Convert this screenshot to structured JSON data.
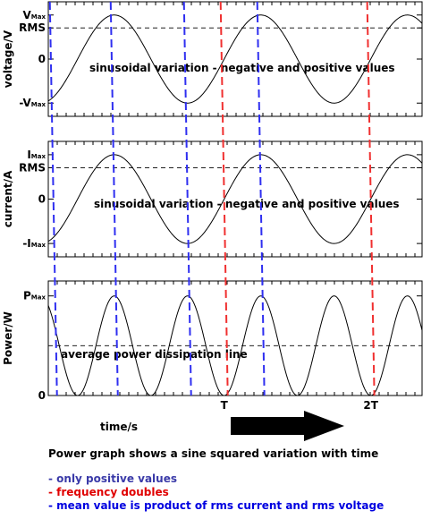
{
  "figure": {
    "xlabel": "time/s",
    "caption": "Power graph shows a sine squared variation with time",
    "bullets": [
      {
        "text": "- only positive values",
        "color": "#3a3aa8"
      },
      {
        "text": "- frequency doubles",
        "color": "#e00000"
      },
      {
        "text": "- mean value is product of rms current and rms voltage",
        "color": "#0000e0"
      }
    ],
    "x_tick_labels": [
      "T",
      "2T"
    ]
  },
  "chart_data": [
    {
      "type": "line",
      "ylabel": "voltage/V",
      "annotation": "sinusoidal variation - negative and positive values",
      "yticks": [
        {
          "main": "V",
          "sub": "Max",
          "value": 1
        },
        {
          "main": "RMS",
          "sub": "",
          "value": 0.707
        },
        {
          "main": "0",
          "sub": "",
          "value": 0
        },
        {
          "main": "-V",
          "sub": "Max",
          "value": -1
        }
      ],
      "series": [
        {
          "function": "sin",
          "amplitude": 1,
          "frequency_cycles_per_T": 1,
          "phase_rad": 0
        }
      ],
      "rms_line": 0.707,
      "x": [
        0,
        0.125,
        0.25,
        0.375,
        0.5,
        0.625,
        0.75,
        0.875,
        1,
        1.125,
        1.25,
        1.375,
        1.5,
        1.625,
        1.75,
        1.875,
        2
      ],
      "values": [
        0,
        0.707,
        1,
        0.707,
        0,
        -0.707,
        -1,
        -0.707,
        0,
        0.707,
        1,
        0.707,
        0,
        -0.707,
        -1,
        -0.707,
        0
      ],
      "ylim": [
        -1.3,
        1.3
      ],
      "xlim": [
        -0.2,
        2.35
      ]
    },
    {
      "type": "line",
      "ylabel": "current/A",
      "annotation": "sinusoidal variation - negative and positive values",
      "yticks": [
        {
          "main": "I",
          "sub": "Max",
          "value": 1
        },
        {
          "main": "RMS",
          "sub": "",
          "value": 0.707
        },
        {
          "main": "0",
          "sub": "",
          "value": 0
        },
        {
          "main": "-I",
          "sub": "Max",
          "value": -1
        }
      ],
      "series": [
        {
          "function": "sin",
          "amplitude": 1,
          "frequency_cycles_per_T": 1,
          "phase_rad": 0
        }
      ],
      "rms_line": 0.707,
      "x": [
        0,
        0.125,
        0.25,
        0.375,
        0.5,
        0.625,
        0.75,
        0.875,
        1,
        1.125,
        1.25,
        1.375,
        1.5,
        1.625,
        1.75,
        1.875,
        2
      ],
      "values": [
        0,
        0.707,
        1,
        0.707,
        0,
        -0.707,
        -1,
        -0.707,
        0,
        0.707,
        1,
        0.707,
        0,
        -0.707,
        -1,
        -0.707,
        0
      ],
      "ylim": [
        -1.3,
        1.3
      ],
      "xlim": [
        -0.2,
        2.35
      ]
    },
    {
      "type": "line",
      "ylabel": "Power/W",
      "annotation": "average power dissipation line",
      "yticks": [
        {
          "main": "P",
          "sub": "Max",
          "value": 1
        },
        {
          "main": "0",
          "sub": "",
          "value": 0
        }
      ],
      "series": [
        {
          "function": "sin_squared",
          "amplitude": 1,
          "frequency_cycles_per_T": 2,
          "phase_rad": 0
        }
      ],
      "average_line": 0.5,
      "x": [
        0,
        0.125,
        0.25,
        0.375,
        0.5,
        0.625,
        0.75,
        0.875,
        1,
        1.125,
        1.25,
        1.375,
        1.5,
        1.625,
        1.75,
        1.875,
        2
      ],
      "values": [
        0,
        0.5,
        1,
        0.5,
        0,
        0.5,
        1,
        0.5,
        0,
        0.5,
        1,
        0.5,
        0,
        0.5,
        1,
        0.5,
        0
      ],
      "ylim": [
        0,
        1.15
      ],
      "xlim": [
        -0.2,
        2.35
      ]
    }
  ],
  "reference_lines": {
    "blue_dashed_x": [
      -0.165,
      0.25,
      0.75,
      1.25
    ],
    "red_dashed_x": [
      1,
      2
    ],
    "blue_color": "#2f2ff0",
    "red_color": "#f03030"
  },
  "arrow_color": "#000000"
}
